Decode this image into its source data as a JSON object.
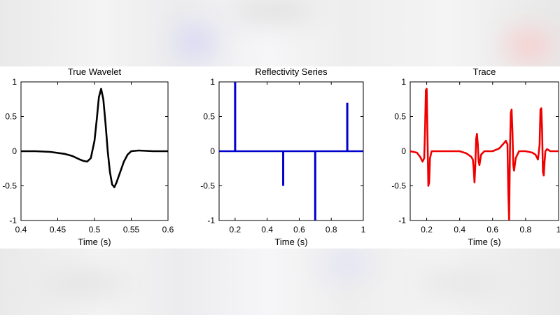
{
  "chart_data": [
    {
      "type": "line",
      "title": "True Wavelet",
      "xlabel": "Time (s)",
      "ylabel": "",
      "xlim": [
        0.4,
        0.6
      ],
      "ylim": [
        -1,
        1
      ],
      "xticks": [
        "0.4",
        "0.45",
        "0.5",
        "0.55",
        "0.6"
      ],
      "yticks": [
        "-1",
        "-0.5",
        "0",
        "0.5",
        "1"
      ],
      "grid": false,
      "color": "#000000",
      "series": [
        {
          "x": [
            0.4,
            0.42,
            0.44,
            0.46,
            0.47,
            0.48,
            0.485,
            0.49,
            0.495,
            0.5,
            0.503,
            0.506,
            0.509,
            0.512,
            0.515,
            0.518,
            0.521,
            0.524,
            0.527,
            0.53,
            0.535,
            0.54,
            0.545,
            0.55,
            0.56,
            0.58,
            0.6
          ],
          "y": [
            0.0,
            0.0,
            -0.01,
            -0.04,
            -0.07,
            -0.12,
            -0.14,
            -0.15,
            -0.1,
            0.15,
            0.45,
            0.78,
            0.9,
            0.75,
            0.4,
            0.0,
            -0.3,
            -0.48,
            -0.52,
            -0.45,
            -0.3,
            -0.15,
            -0.05,
            0.0,
            0.01,
            0.0,
            0.0
          ]
        }
      ]
    },
    {
      "type": "stem",
      "title": "Reflectivity Series",
      "xlabel": "Time (s)",
      "ylabel": "",
      "xlim": [
        0.1,
        1.0
      ],
      "ylim": [
        -1,
        1
      ],
      "xticks": [
        "0.2",
        "0.4",
        "0.6",
        "0.8",
        "1"
      ],
      "yticks": [
        "-1",
        "-0.5",
        "0",
        "0.5",
        "1"
      ],
      "grid": false,
      "color": "#0000cc",
      "baseline": 0,
      "series": [
        {
          "x": [
            0.2,
            0.5,
            0.7,
            0.9
          ],
          "y": [
            1.0,
            -0.5,
            -1.0,
            0.7
          ]
        }
      ]
    },
    {
      "type": "line",
      "title": "Trace",
      "xlabel": "Time (s)",
      "ylabel": "",
      "xlim": [
        0.1,
        1.0
      ],
      "ylim": [
        -1,
        1
      ],
      "xticks": [
        "0.2",
        "0.4",
        "0.6",
        "0.8",
        "1"
      ],
      "yticks": [
        "-1",
        "-0.5",
        "0",
        "0.5",
        "1"
      ],
      "grid": false,
      "color": "#ee0000",
      "series": [
        {
          "x": [
            0.1,
            0.14,
            0.16,
            0.175,
            0.185,
            0.19,
            0.195,
            0.2,
            0.205,
            0.21,
            0.215,
            0.22,
            0.23,
            0.25,
            0.3,
            0.4,
            0.44,
            0.47,
            0.48,
            0.485,
            0.49,
            0.495,
            0.5,
            0.505,
            0.51,
            0.515,
            0.52,
            0.53,
            0.55,
            0.6,
            0.64,
            0.67,
            0.68,
            0.69,
            0.695,
            0.7,
            0.705,
            0.71,
            0.715,
            0.72,
            0.725,
            0.73,
            0.74,
            0.76,
            0.8,
            0.84,
            0.86,
            0.875,
            0.885,
            0.89,
            0.895,
            0.9,
            0.905,
            0.91,
            0.915,
            0.92,
            0.93,
            0.95,
            1.0
          ],
          "y": [
            0.0,
            -0.02,
            -0.08,
            -0.15,
            -0.1,
            0.3,
            0.88,
            0.9,
            0.2,
            -0.5,
            -0.45,
            -0.1,
            0.0,
            0.0,
            0.0,
            0.0,
            -0.03,
            -0.08,
            -0.12,
            -0.25,
            -0.45,
            -0.2,
            0.18,
            0.25,
            0.1,
            -0.15,
            -0.2,
            -0.05,
            0.0,
            0.0,
            0.04,
            0.12,
            0.15,
            0.1,
            -0.6,
            -1.0,
            0.0,
            0.55,
            0.6,
            0.3,
            -0.2,
            -0.28,
            -0.1,
            0.0,
            0.0,
            -0.02,
            -0.05,
            -0.12,
            0.1,
            0.6,
            0.62,
            0.3,
            -0.3,
            -0.35,
            -0.15,
            0.0,
            0.03,
            0.0,
            0.0
          ]
        }
      ]
    }
  ]
}
